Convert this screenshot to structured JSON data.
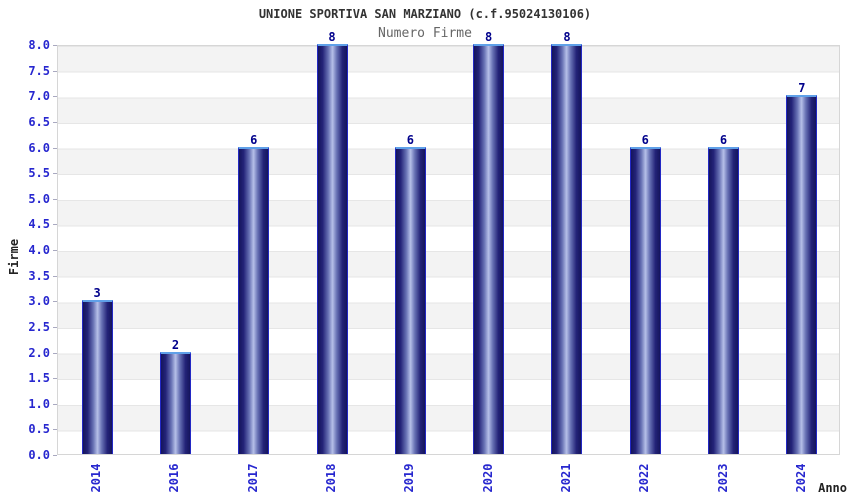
{
  "title": "UNIONE SPORTIVA SAN MARZIANO (c.f.95024130106)",
  "subtitle": "Numero Firme",
  "chart_data": {
    "type": "bar",
    "title": "UNIONE SPORTIVA SAN MARZIANO (c.f.95024130106)",
    "subtitle": "Numero Firme",
    "categories": [
      "2014",
      "2016",
      "2017",
      "2018",
      "2019",
      "2020",
      "2021",
      "2022",
      "2023",
      "2024"
    ],
    "values": [
      3,
      2,
      6,
      8,
      6,
      8,
      8,
      6,
      6,
      7
    ],
    "xlabel": "Anno",
    "ylabel": "Firme",
    "ylim": [
      0,
      8
    ],
    "ytick_step": 0.5,
    "ytick_labels": [
      "0.0",
      "0.5",
      "1.0",
      "1.5",
      "2.0",
      "2.5",
      "3.0",
      "3.5",
      "4.0",
      "4.5",
      "5.0",
      "5.5",
      "6.0",
      "6.5",
      "7.0",
      "7.5",
      "8.0"
    ],
    "legend": "none",
    "grid": "horizontal-bands-alternating",
    "colors": {
      "bar_dark": "#15155c",
      "bar_light": "#b6c0e8",
      "bar_edge": "#2228c4",
      "bar_top_edge": "#5fa0e8",
      "tick_label": "#2727cf",
      "value_label": "#00008b",
      "title": "#333333",
      "subtitle": "#666666",
      "axis_title": "#222222",
      "band_gray": "#f3f3f3",
      "band_white": "#ffffff",
      "gridline": "#e6e6e6",
      "background": "#ffffff"
    }
  }
}
